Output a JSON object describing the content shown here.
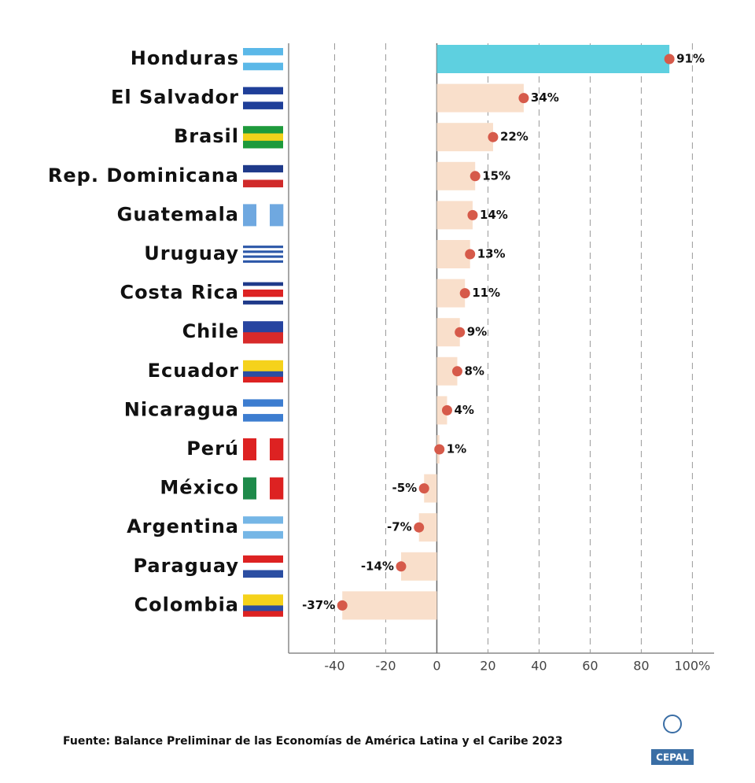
{
  "chart_data": {
    "type": "bar",
    "orientation": "horizontal",
    "categories": [
      "Honduras",
      "El Salvador",
      "Brasil",
      "Rep. Dominicana",
      "Guatemala",
      "Uruguay",
      "Costa Rica",
      "Chile",
      "Ecuador",
      "Nicaragua",
      "Perú",
      "México",
      "Argentina",
      "Paraguay",
      "Colombia"
    ],
    "values": [
      91,
      34,
      22,
      15,
      14,
      13,
      11,
      9,
      8,
      4,
      1,
      -5,
      -7,
      -14,
      -37
    ],
    "value_labels": [
      "91%",
      "34%",
      "22%",
      "15%",
      "14%",
      "13%",
      "11%",
      "9%",
      "8%",
      "4%",
      "1%",
      "-5%",
      "-7%",
      "-14%",
      "-37%"
    ],
    "colors": [
      "#5ed0e0",
      "#f9dfcb",
      "#f9dfcb",
      "#f9dfcb",
      "#f9dfcb",
      "#f9dfcb",
      "#f9dfcb",
      "#f9dfcb",
      "#f9dfcb",
      "#f9dfcb",
      "#f9dfcb",
      "#f9dfcb",
      "#f9dfcb",
      "#f9dfcb",
      "#f9dfcb"
    ],
    "marker_color": "#d65a4a",
    "xlim": [
      -58,
      108.5
    ],
    "xticks": [
      -40,
      -20,
      0,
      20,
      40,
      60,
      80,
      {
        "value": 100,
        "label": "100%"
      }
    ],
    "grid": true,
    "source": "Fuente: Balance Preliminar de las Economías de América Latina y el Caribe 2023",
    "logo": "CEPAL"
  }
}
